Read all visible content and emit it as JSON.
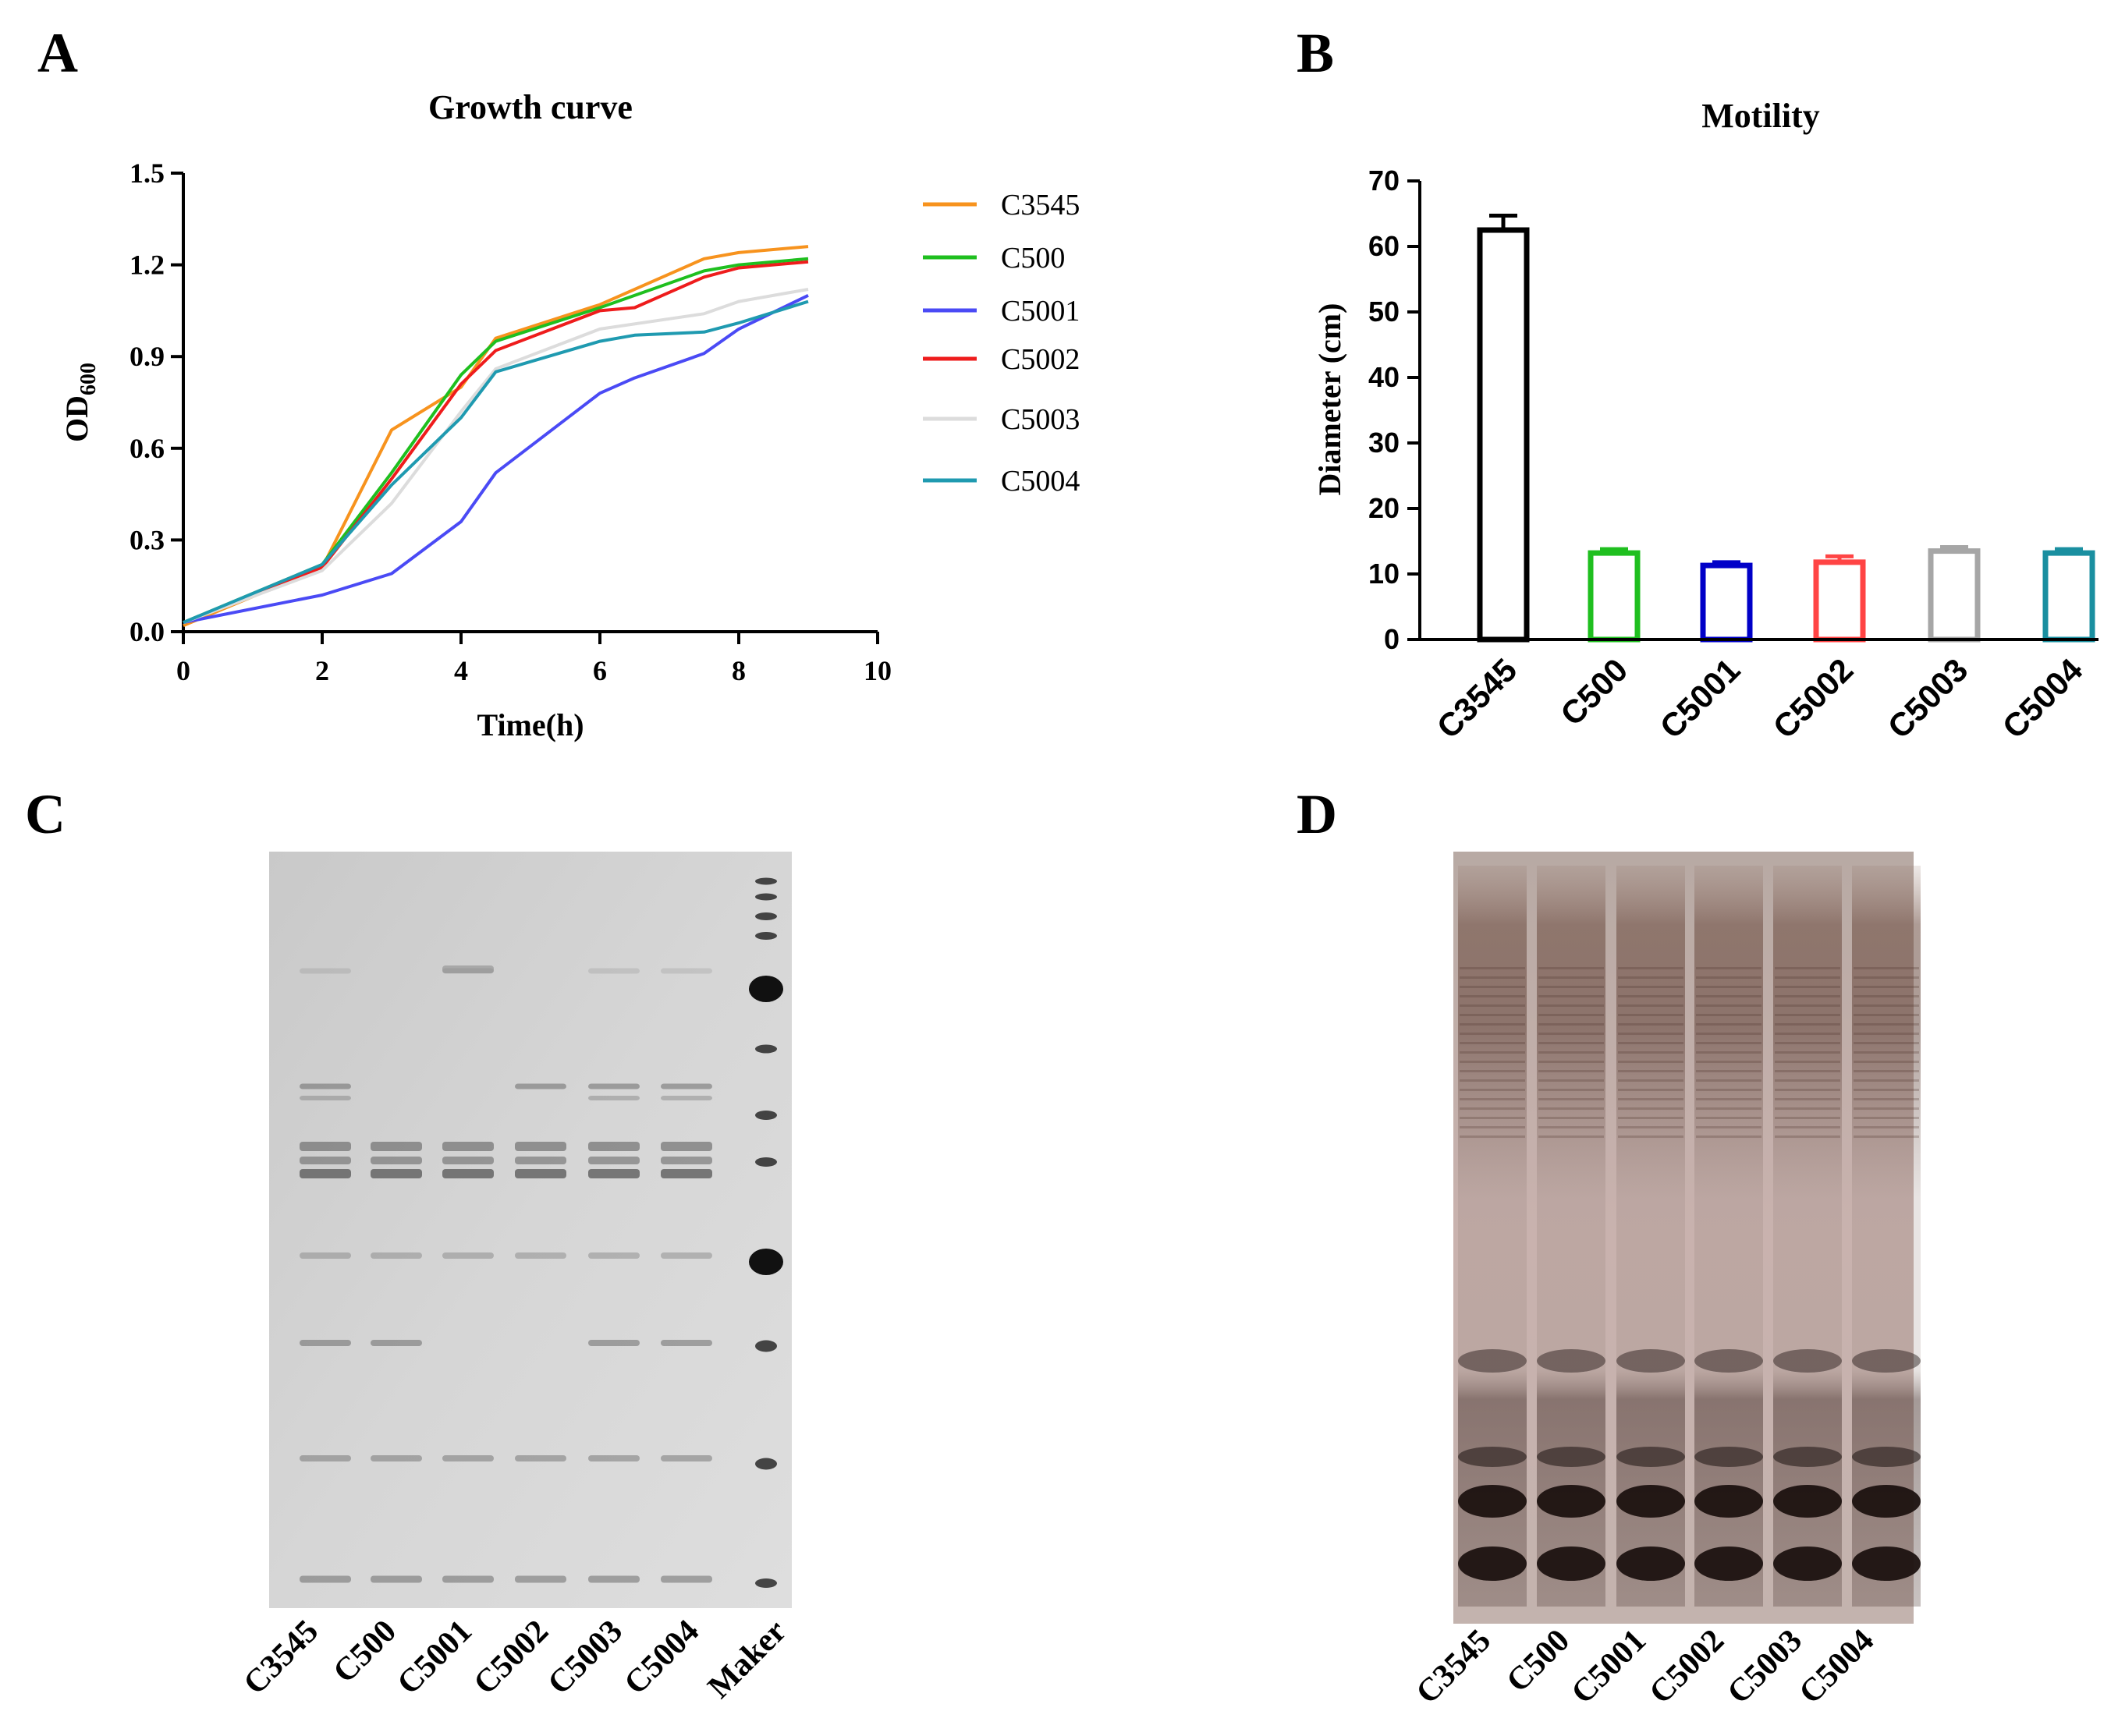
{
  "panels": {
    "A": "A",
    "B": "B",
    "C": "C",
    "D": "D"
  },
  "chart_data": [
    {
      "type": "line",
      "title": "Growth curve",
      "xlabel": "Time(h)",
      "ylabel": "OD",
      "ylabel_subscript": "600",
      "xlim": [
        0,
        10
      ],
      "ylim": [
        0,
        1.5
      ],
      "xticks": [
        "0",
        "2",
        "4",
        "6",
        "8",
        "10"
      ],
      "yticks": [
        "0.0",
        "0.3",
        "0.6",
        "0.9",
        "1.2",
        "1.5"
      ],
      "legend_position": "right",
      "series": [
        {
          "name": "C3545",
          "color": "#f7931e",
          "points": [
            [
              0,
              0.02
            ],
            [
              2,
              0.21
            ],
            [
              3,
              0.66
            ],
            [
              4,
              0.8
            ],
            [
              4.5,
              0.96
            ],
            [
              6,
              1.07
            ],
            [
              7.5,
              1.22
            ],
            [
              8,
              1.24
            ],
            [
              9,
              1.26
            ]
          ]
        },
        {
          "name": "C500",
          "color": "#1fbf1f",
          "points": [
            [
              0,
              0.03
            ],
            [
              2,
              0.22
            ],
            [
              3,
              0.52
            ],
            [
              4,
              0.84
            ],
            [
              4.5,
              0.95
            ],
            [
              6,
              1.06
            ],
            [
              7.5,
              1.18
            ],
            [
              8,
              1.2
            ],
            [
              9,
              1.22
            ]
          ]
        },
        {
          "name": "C5001",
          "color": "#4a4af5",
          "points": [
            [
              0,
              0.03
            ],
            [
              2,
              0.12
            ],
            [
              3,
              0.19
            ],
            [
              4,
              0.36
            ],
            [
              4.5,
              0.52
            ],
            [
              6,
              0.78
            ],
            [
              6.5,
              0.83
            ],
            [
              7.5,
              0.91
            ],
            [
              8,
              0.99
            ],
            [
              9,
              1.1
            ]
          ]
        },
        {
          "name": "C5002",
          "color": "#ee1c1c",
          "points": [
            [
              0,
              0.03
            ],
            [
              2,
              0.21
            ],
            [
              3,
              0.5
            ],
            [
              4,
              0.81
            ],
            [
              4.5,
              0.92
            ],
            [
              6,
              1.05
            ],
            [
              6.5,
              1.06
            ],
            [
              7.5,
              1.16
            ],
            [
              8,
              1.19
            ],
            [
              9,
              1.21
            ]
          ]
        },
        {
          "name": "C5003",
          "color": "#dcdcdc",
          "points": [
            [
              0,
              0.03
            ],
            [
              2,
              0.2
            ],
            [
              3,
              0.42
            ],
            [
              4,
              0.72
            ],
            [
              4.5,
              0.86
            ],
            [
              6,
              0.99
            ],
            [
              7.5,
              1.04
            ],
            [
              8,
              1.08
            ],
            [
              9,
              1.12
            ]
          ]
        },
        {
          "name": "C5004",
          "color": "#1f9ab0",
          "points": [
            [
              0,
              0.03
            ],
            [
              2,
              0.22
            ],
            [
              3,
              0.48
            ],
            [
              4,
              0.7
            ],
            [
              4.5,
              0.85
            ],
            [
              6,
              0.95
            ],
            [
              6.5,
              0.97
            ],
            [
              7.5,
              0.98
            ],
            [
              8,
              1.01
            ],
            [
              9,
              1.08
            ]
          ]
        }
      ]
    },
    {
      "type": "bar",
      "title": "Motility",
      "xlabel": "",
      "ylabel": "Diameter (cm)",
      "ylim": [
        0,
        70
      ],
      "yticks": [
        "0",
        "10",
        "20",
        "30",
        "40",
        "50",
        "60",
        "70"
      ],
      "categories": [
        "C3545",
        "C500",
        "C5001",
        "C5002",
        "C5003",
        "C5004"
      ],
      "values": [
        62.5,
        13.2,
        11.3,
        11.8,
        13.5,
        13.2
      ],
      "errors": [
        2.2,
        0.6,
        0.5,
        0.9,
        0.6,
        0.6
      ],
      "colors": [
        "#000000",
        "#1fbf1f",
        "#0000c8",
        "#ff4444",
        "#a6a6a6",
        "#1a8fa0"
      ]
    }
  ],
  "gel_c": {
    "lane_labels": [
      "C3545",
      "C500",
      "C5001",
      "C5002",
      "C5003",
      "C5004",
      "Maker"
    ]
  },
  "gel_d": {
    "lane_labels": [
      "C3545",
      "C500",
      "C5001",
      "C5002",
      "C5003",
      "C5004"
    ]
  }
}
